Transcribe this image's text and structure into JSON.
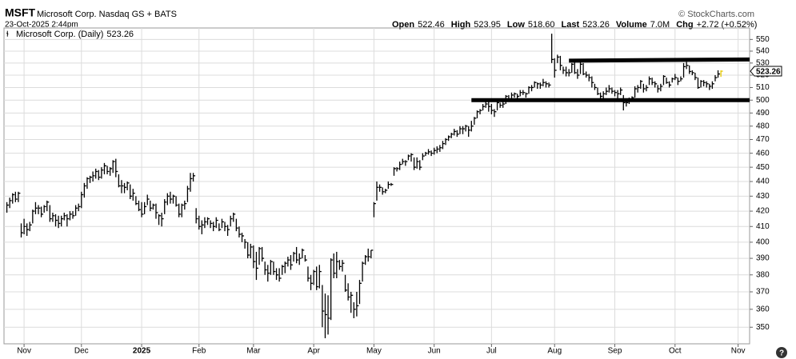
{
  "header": {
    "symbol": "MSFT",
    "name": "Microsoft Corp. Nasdaq GS + BATS",
    "timestamp": "23-Oct-2025 2:44pm",
    "credit": "© StockCharts.com",
    "stats": [
      {
        "label": "Open",
        "value": "522.46"
      },
      {
        "label": "High",
        "value": "523.95"
      },
      {
        "label": "Low",
        "value": "518.60"
      },
      {
        "label": "Last",
        "value": "523.26"
      },
      {
        "label": "Volume",
        "value": "7.0M"
      },
      {
        "label": "Chg",
        "value": "+2.72 (+0.52%)"
      }
    ]
  },
  "chart_data": {
    "type": "hlc-bar",
    "legend": "Microsoft Corp. (Daily)",
    "color": "#000000",
    "last_color": "#e6c800",
    "log_scale": true,
    "grid": true,
    "ylim": [
      341,
      560
    ],
    "yticks": [
      350,
      360,
      370,
      380,
      390,
      400,
      410,
      420,
      430,
      440,
      450,
      460,
      470,
      480,
      490,
      500,
      510,
      520,
      530,
      540,
      550
    ],
    "xlim": [
      -1,
      259
    ],
    "xticks": [
      {
        "value": 6,
        "label": "Nov"
      },
      {
        "value": 26,
        "label": "Dec"
      },
      {
        "value": 47,
        "label": "2025"
      },
      {
        "value": 67,
        "label": "Feb"
      },
      {
        "value": 86,
        "label": "Mar"
      },
      {
        "value": 107,
        "label": "Apr"
      },
      {
        "value": 128,
        "label": "May"
      },
      {
        "value": 149,
        "label": "Jun"
      },
      {
        "value": 169,
        "label": "Jul"
      },
      {
        "value": 191,
        "label": "Aug"
      },
      {
        "value": 212,
        "label": "Sep"
      },
      {
        "value": 233,
        "label": "Oct"
      },
      {
        "value": 255,
        "label": "Nov"
      }
    ],
    "close": [
      424,
      427,
      431,
      428,
      432,
      406,
      410,
      408,
      411,
      420,
      422,
      422,
      418,
      423,
      426,
      415,
      417,
      414,
      412,
      415,
      417,
      415,
      418,
      417,
      422,
      423,
      431,
      437,
      442,
      443,
      444,
      447,
      443,
      448,
      451,
      447,
      449,
      454,
      447,
      437,
      437,
      436,
      439,
      430,
      432,
      425,
      421,
      418,
      423,
      428,
      422,
      424,
      419,
      417,
      415,
      426,
      430,
      428,
      430,
      424,
      418,
      424,
      425,
      435,
      442,
      444,
      415,
      410,
      411,
      413,
      415,
      412,
      410,
      414,
      408,
      413,
      410,
      408,
      415,
      418,
      409,
      405,
      404,
      400,
      392,
      397,
      388,
      384,
      396,
      390,
      383,
      381,
      388,
      382,
      380,
      378,
      385,
      387,
      389,
      386,
      393,
      389,
      390,
      395,
      389,
      378,
      375,
      382,
      373,
      382,
      359,
      357,
      355,
      389,
      381,
      388,
      385,
      387,
      371,
      367,
      368,
      360,
      362,
      375,
      387,
      391,
      391,
      395,
      425,
      436,
      436,
      433,
      434,
      438,
      438,
      449,
      449,
      452,
      454,
      454,
      458,
      459,
      450,
      454,
      450,
      458,
      460,
      461,
      460,
      462,
      463,
      464,
      467,
      470,
      472,
      474,
      476,
      474,
      478,
      478,
      480,
      477,
      480,
      486,
      491,
      492,
      495,
      497,
      495,
      492,
      491,
      498,
      496,
      497,
      503,
      501,
      504,
      505,
      503,
      506,
      506,
      505,
      510,
      510,
      514,
      513,
      512,
      514,
      513,
      512,
      533,
      524,
      535,
      528,
      524,
      522,
      522,
      529,
      522,
      520,
      529,
      521,
      520,
      518,
      514,
      510,
      505,
      503,
      505,
      507,
      509,
      507,
      506,
      505,
      508,
      498,
      498,
      500,
      502,
      509,
      510,
      515,
      509,
      510,
      517,
      514,
      513,
      509,
      511,
      519,
      514,
      512,
      517,
      518,
      515,
      517,
      527,
      528,
      523,
      522,
      518,
      510,
      515,
      514,
      513,
      511,
      513,
      518,
      521,
      523.26
    ],
    "high": [
      426,
      429,
      432,
      433,
      433,
      412,
      415,
      412,
      413,
      421,
      426,
      424,
      423,
      424,
      427,
      424,
      419,
      418,
      417,
      417,
      419,
      418,
      420,
      420,
      424,
      425,
      433,
      439,
      443,
      444,
      447,
      449,
      448,
      450,
      453,
      451,
      450,
      455,
      456,
      445,
      441,
      439,
      440,
      438,
      435,
      430,
      427,
      426,
      426,
      431,
      427,
      425,
      425,
      418,
      419,
      428,
      432,
      433,
      431,
      430,
      425,
      425,
      427,
      437,
      446,
      446,
      422,
      417,
      414,
      416,
      416,
      414,
      413,
      416,
      412,
      415,
      413,
      411,
      417,
      419,
      415,
      410,
      406,
      402,
      400,
      399,
      398,
      394,
      397,
      397,
      388,
      386,
      389,
      388,
      384,
      384,
      386,
      388,
      391,
      392,
      394,
      397,
      393,
      396,
      392,
      385,
      380,
      383,
      385,
      386,
      374,
      369,
      368,
      390,
      393,
      394,
      389,
      389,
      380,
      375,
      370,
      364,
      370,
      377,
      388,
      392,
      396,
      395,
      426,
      440,
      438,
      436,
      435,
      440,
      439,
      450,
      450,
      454,
      456,
      455,
      459,
      460,
      457,
      457,
      455,
      460,
      461,
      463,
      462,
      464,
      465,
      466,
      469,
      471,
      473,
      475,
      478,
      477,
      480,
      480,
      481,
      480,
      484,
      487,
      492,
      493,
      497,
      499,
      499,
      497,
      493,
      499,
      498,
      499,
      504,
      504,
      506,
      506,
      505,
      508,
      508,
      506,
      511,
      512,
      515,
      514,
      514,
      517,
      515,
      514,
      555,
      534,
      537,
      536,
      527,
      527,
      525,
      530,
      532,
      525,
      531,
      530,
      523,
      521,
      519,
      513,
      510,
      506,
      507,
      510,
      512,
      510,
      508,
      508,
      510,
      504,
      501,
      502,
      503,
      511,
      512,
      516,
      513,
      512,
      519,
      518,
      515,
      512,
      513,
      520,
      518,
      515,
      518,
      521,
      518,
      519,
      530,
      531,
      528,
      524,
      522,
      518,
      516,
      516,
      515,
      513,
      515,
      520,
      524,
      523.95
    ],
    "low": [
      419,
      422,
      425,
      426,
      426,
      403,
      405,
      404,
      407,
      412,
      418,
      418,
      416,
      419,
      420,
      413,
      413,
      410,
      409,
      410,
      414,
      410,
      414,
      415,
      417,
      420,
      422,
      429,
      435,
      439,
      440,
      442,
      441,
      442,
      445,
      445,
      444,
      446,
      443,
      436,
      432,
      432,
      434,
      428,
      427,
      424,
      420,
      416,
      418,
      424,
      420,
      421,
      415,
      411,
      410,
      418,
      424,
      425,
      425,
      423,
      416,
      416,
      421,
      426,
      433,
      440,
      412,
      408,
      405,
      409,
      411,
      409,
      407,
      409,
      407,
      409,
      407,
      404,
      410,
      413,
      407,
      403,
      400,
      396,
      390,
      390,
      384,
      377,
      386,
      388,
      380,
      376,
      380,
      380,
      377,
      376,
      380,
      381,
      385,
      383,
      388,
      387,
      386,
      390,
      388,
      376,
      371,
      374,
      371,
      372,
      350,
      344,
      346,
      354,
      378,
      378,
      383,
      382,
      370,
      365,
      358,
      355,
      356,
      363,
      376,
      386,
      388,
      390,
      416,
      427,
      433,
      431,
      432,
      435,
      437,
      444,
      447,
      448,
      452,
      451,
      455,
      454,
      448,
      449,
      448,
      455,
      458,
      459,
      458,
      459,
      460,
      461,
      463,
      466,
      469,
      471,
      473,
      472,
      474,
      474,
      476,
      472,
      476,
      481,
      486,
      489,
      492,
      494,
      491,
      489,
      487,
      492,
      494,
      494,
      497,
      499,
      500,
      502,
      501,
      503,
      504,
      502,
      505,
      507,
      510,
      509,
      509,
      511,
      510,
      510,
      530,
      518,
      530,
      524,
      521,
      519,
      519,
      522,
      521,
      517,
      521,
      520,
      518,
      515,
      510,
      508,
      504,
      500,
      501,
      504,
      506,
      505,
      503,
      501,
      504,
      492,
      495,
      497,
      499,
      502,
      506,
      509,
      506,
      507,
      512,
      512,
      510,
      506,
      507,
      512,
      513,
      510,
      514,
      516,
      512,
      515,
      518,
      525,
      521,
      520,
      516,
      509,
      510,
      511,
      510,
      508,
      509,
      515,
      518,
      518.6
    ],
    "trendlines": [
      {
        "x": [
          196,
          259
        ],
        "y": [
          532,
          533
        ]
      },
      {
        "x": [
          162,
          259
        ],
        "y": [
          500,
          500
        ]
      }
    ]
  }
}
